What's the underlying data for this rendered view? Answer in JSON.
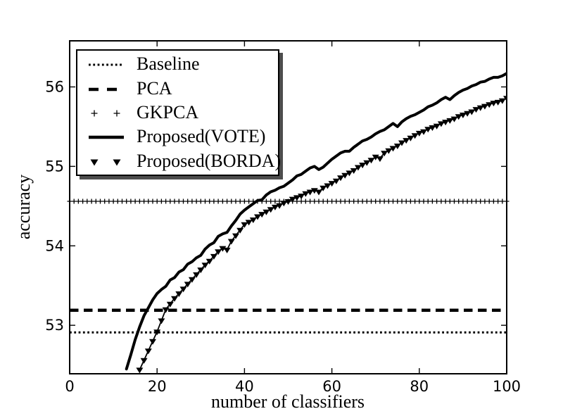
{
  "figure": {
    "background": "#ffffff",
    "foreground": "#000000"
  },
  "chart_data": {
    "type": "line",
    "title": "",
    "xlabel": "number of classifiers",
    "ylabel": "accuracy",
    "xlim": [
      0,
      100
    ],
    "ylim": [
      52.39,
      56.58
    ],
    "xticks": [
      0,
      20,
      40,
      60,
      80,
      100
    ],
    "yticks": [
      53,
      54,
      55,
      56
    ],
    "grid": false,
    "legend_position": "upper left",
    "colors": {
      "line": "#000000",
      "background": "#ffffff",
      "legend_shadow": "#4d4d4d"
    },
    "series": [
      {
        "name": "Baseline",
        "kind": "hline",
        "style": "dotted",
        "y": 52.91,
        "x_start": 0,
        "x_end": 100
      },
      {
        "name": "PCA",
        "kind": "hline",
        "style": "dashed",
        "y": 53.19,
        "x_start": 0,
        "x_end": 100
      },
      {
        "name": "GKPCA",
        "kind": "hline",
        "style": "plus-markers",
        "y": 54.56,
        "x_start": 0,
        "x_end": 100,
        "marker_step": 1
      },
      {
        "name": "Proposed(VOTE)",
        "kind": "curve",
        "style": "solid",
        "x": [
          13,
          14,
          15,
          16,
          17,
          18,
          19,
          20,
          21,
          22,
          23,
          24,
          25,
          26,
          27,
          28,
          29,
          30,
          31,
          32,
          33,
          34,
          35,
          36,
          37,
          38,
          39,
          40,
          41,
          42,
          43,
          44,
          45,
          46,
          47,
          48,
          49,
          50,
          51,
          52,
          53,
          54,
          55,
          56,
          57,
          58,
          59,
          60,
          61,
          62,
          63,
          64,
          65,
          66,
          67,
          68,
          69,
          70,
          71,
          72,
          73,
          74,
          75,
          76,
          77,
          78,
          79,
          80,
          81,
          82,
          83,
          84,
          85,
          86,
          87,
          88,
          89,
          90,
          91,
          92,
          93,
          94,
          95,
          96,
          97,
          98,
          99,
          100
        ],
        "y": [
          52.45,
          52.63,
          52.82,
          52.98,
          53.12,
          53.22,
          53.32,
          53.4,
          53.45,
          53.49,
          53.57,
          53.6,
          53.67,
          53.7,
          53.77,
          53.8,
          53.85,
          53.88,
          53.96,
          54.01,
          54.04,
          54.12,
          54.15,
          54.17,
          54.25,
          54.32,
          54.4,
          54.45,
          54.49,
          54.53,
          54.57,
          54.58,
          54.64,
          54.68,
          54.7,
          54.73,
          54.75,
          54.79,
          54.83,
          54.88,
          54.9,
          54.94,
          54.98,
          55.0,
          54.96,
          54.99,
          55.04,
          55.09,
          55.13,
          55.17,
          55.19,
          55.19,
          55.24,
          55.28,
          55.32,
          55.34,
          55.37,
          55.41,
          55.44,
          55.46,
          55.5,
          55.54,
          55.5,
          55.56,
          55.6,
          55.63,
          55.65,
          55.68,
          55.71,
          55.75,
          55.77,
          55.8,
          55.84,
          55.87,
          55.84,
          55.89,
          55.93,
          55.96,
          55.98,
          56.01,
          56.03,
          56.06,
          56.07,
          56.1,
          56.12,
          56.12,
          56.14,
          56.17
        ]
      },
      {
        "name": "Proposed(BORDA)",
        "kind": "curve",
        "style": "triangle-down-markers",
        "x": [
          16,
          17,
          18,
          19,
          20,
          21,
          22,
          23,
          24,
          25,
          26,
          27,
          28,
          29,
          30,
          31,
          32,
          33,
          34,
          35,
          36,
          37,
          38,
          39,
          40,
          41,
          42,
          43,
          44,
          45,
          46,
          47,
          48,
          49,
          50,
          51,
          52,
          53,
          54,
          55,
          56,
          57,
          58,
          59,
          60,
          61,
          62,
          63,
          64,
          65,
          66,
          67,
          68,
          69,
          70,
          71,
          72,
          73,
          74,
          75,
          76,
          77,
          78,
          79,
          80,
          81,
          82,
          83,
          84,
          85,
          86,
          87,
          88,
          89,
          90,
          91,
          92,
          93,
          94,
          95,
          96,
          97,
          98,
          99,
          100
        ],
        "y": [
          52.44,
          52.56,
          52.68,
          52.8,
          52.92,
          53.06,
          53.2,
          53.27,
          53.34,
          53.4,
          53.46,
          53.52,
          53.58,
          53.64,
          53.7,
          53.76,
          53.81,
          53.87,
          53.93,
          53.97,
          53.95,
          54.06,
          54.13,
          54.2,
          54.27,
          54.3,
          54.33,
          54.37,
          54.4,
          54.43,
          54.46,
          54.49,
          54.51,
          54.54,
          54.56,
          54.59,
          54.61,
          54.63,
          54.66,
          54.68,
          54.7,
          54.68,
          54.73,
          54.76,
          54.79,
          54.82,
          54.86,
          54.89,
          54.92,
          54.95,
          54.99,
          55.02,
          55.05,
          55.08,
          55.12,
          55.1,
          55.17,
          55.2,
          55.23,
          55.26,
          55.3,
          55.33,
          55.36,
          55.39,
          55.42,
          55.44,
          55.47,
          55.49,
          55.51,
          55.54,
          55.56,
          55.58,
          55.6,
          55.63,
          55.65,
          55.67,
          55.69,
          55.72,
          55.74,
          55.76,
          55.78,
          55.8,
          55.81,
          55.83,
          55.86
        ]
      }
    ]
  },
  "legend": {
    "items": [
      {
        "label": "Baseline"
      },
      {
        "label": "PCA"
      },
      {
        "label": "GKPCA"
      },
      {
        "label": "Proposed(VOTE)"
      },
      {
        "label": "Proposed(BORDA)"
      }
    ]
  }
}
